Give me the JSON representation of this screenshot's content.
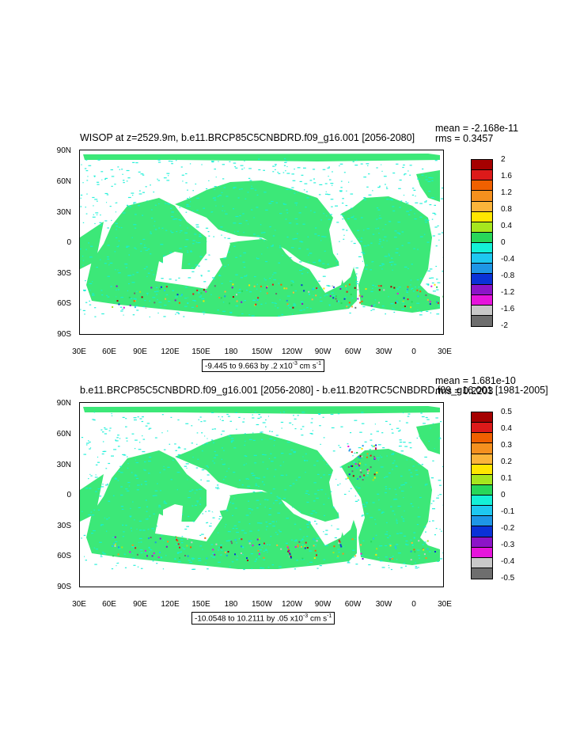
{
  "panels": [
    {
      "title": "WISOP at z=2529.9m, b.e11.BRCP85C5CNBDRD.f09_g16.001 [2056-2080]",
      "mean": "mean = -2.168e-11",
      "rms": "rms = 0.3457",
      "range_label": "-9.445 to 9.663 by .2 x10",
      "range_exp": "-3",
      "range_units": " cm s",
      "range_units_exp": "-1",
      "colorbar_labels": [
        "2",
        "1.6",
        "1.2",
        "0.8",
        "0.4",
        "0",
        "-0.4",
        "-0.8",
        "-1.2",
        "-1.6",
        "-2"
      ]
    },
    {
      "title": "b.e11.BRCP85C5CNBDRD.f09_g16.001 [2056-2080] - b.e11.B20TRC5CNBDRD.f09_g16.001 [1981-2005]",
      "mean": "mean = 1.681e-10",
      "rms": "rms = 0.2203",
      "range_label": "-10.0548 to 10.2111 by .05 x10",
      "range_exp": "-3",
      "range_units": " cm s",
      "range_units_exp": "-1",
      "colorbar_labels": [
        "0.5",
        "0.4",
        "0.3",
        "0.2",
        "0.1",
        "0",
        "-0.1",
        "-0.2",
        "-0.3",
        "-0.4",
        "-0.5"
      ]
    }
  ],
  "lat_labels": [
    "90N",
    "60N",
    "30N",
    "0",
    "30S",
    "60S",
    "90S"
  ],
  "lon_labels": [
    "30E",
    "60E",
    "90E",
    "120E",
    "150E",
    "180",
    "150W",
    "120W",
    "90W",
    "60W",
    "30W",
    "0",
    "30E"
  ],
  "colorbar_colors": [
    "#a50000",
    "#dc1a1a",
    "#f06000",
    "#f5901e",
    "#fbb43a",
    "#ffe600",
    "#a6e61e",
    "#28d75a",
    "#14f0d7",
    "#1ec8f0",
    "#1e96e6",
    "#0a32d7",
    "#8c14c8",
    "#e614dc",
    "#c8c8c8",
    "#6e6e6e"
  ],
  "map_colors": {
    "ocean_base": "#3ce878",
    "ocean_alt": "#14f0d7",
    "land": "#ffffff"
  }
}
